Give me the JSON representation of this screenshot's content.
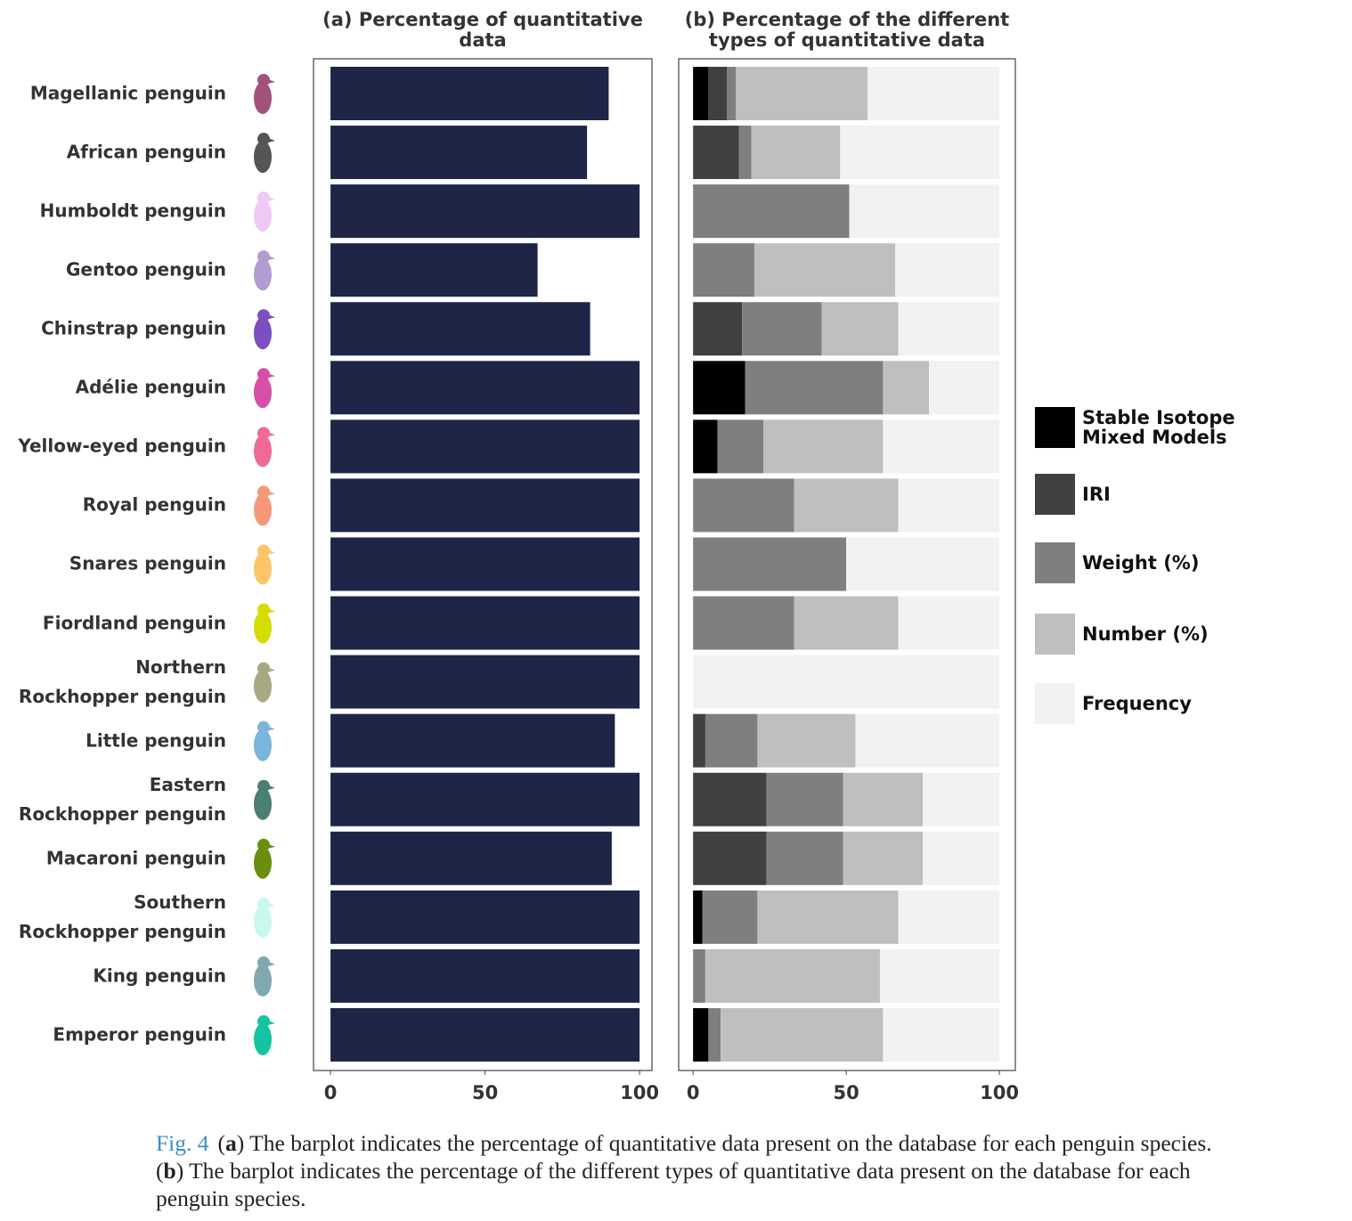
{
  "chart_data": [
    {
      "type": "bar",
      "orientation": "horizontal",
      "title": "(a) Percentage of quantitative\ndata",
      "categories": [
        "Magellanic penguin",
        "African penguin",
        "Humboldt penguin",
        "Gentoo penguin",
        "Chinstrap penguin",
        "Adélie penguin",
        "Yellow-eyed penguin",
        "Royal penguin",
        "Snares penguin",
        "Fiordland penguin",
        "Northern\nRockhopper penguin",
        "Little penguin",
        "Eastern\nRockhopper penguin",
        "Macaroni penguin",
        "Southern\nRockhopper penguin",
        "King penguin",
        "Emperor penguin"
      ],
      "icon_colors": [
        "#a0527a",
        "#555555",
        "#f0c8f5",
        "#b39ad0",
        "#7b4fc0",
        "#d64fa8",
        "#f06a95",
        "#f5987a",
        "#fcc56a",
        "#d4dc00",
        "#a8a882",
        "#7ab6dc",
        "#4a7f72",
        "#6a8e10",
        "#c8f8ee",
        "#80a8b0",
        "#14c4a0"
      ],
      "values": [
        90,
        83,
        100,
        67,
        84,
        100,
        100,
        100,
        100,
        100,
        100,
        92,
        100,
        91,
        100,
        100,
        100
      ],
      "color": "#1f2547",
      "xlim": [
        -5.5,
        104
      ],
      "xticks": [
        0,
        50,
        100
      ]
    },
    {
      "type": "stacked_bar",
      "orientation": "horizontal",
      "title": "(b) Percentage of the different\ntypes of quantitative data",
      "series": [
        {
          "name": "Stable Isotope\nMixed Models",
          "color": "#000000",
          "values": [
            5,
            0,
            0,
            0,
            0,
            17,
            8,
            0,
            0,
            0,
            0,
            0,
            0,
            0,
            3,
            0,
            5
          ]
        },
        {
          "name": "IRI",
          "color": "#404040",
          "values": [
            6,
            15,
            0,
            0,
            16,
            0,
            0,
            0,
            0,
            0,
            0,
            4,
            24,
            24,
            0,
            0,
            0
          ]
        },
        {
          "name": "Weight (%)",
          "color": "#7f7f7f",
          "values": [
            3,
            4,
            51,
            20,
            26,
            45,
            15,
            33,
            50,
            33,
            0,
            17,
            25,
            25,
            18,
            4,
            4
          ]
        },
        {
          "name": "Number (%)",
          "color": "#bfbfbf",
          "values": [
            43,
            29,
            0,
            46,
            25,
            15,
            39,
            34,
            0,
            34,
            0,
            32,
            26,
            26,
            46,
            57,
            53
          ]
        },
        {
          "name": "Frequency",
          "color": "#f2f2f2",
          "values": [
            43,
            52,
            49,
            34,
            33,
            23,
            38,
            33,
            50,
            33,
            100,
            47,
            25,
            25,
            33,
            39,
            38
          ]
        }
      ],
      "xlim": [
        -4.7,
        105.2
      ],
      "xticks": [
        0,
        50,
        100
      ],
      "legend": "right"
    }
  ],
  "caption": {
    "label": "Fig. 4",
    "parts": [
      "(",
      "a",
      ") The barplot indicates the percentage of quantitative data present on the database for each penguin species. (",
      "b",
      ") The barplot indicates the percentage of the different types of quantitative data present on the database for each penguin species."
    ]
  }
}
